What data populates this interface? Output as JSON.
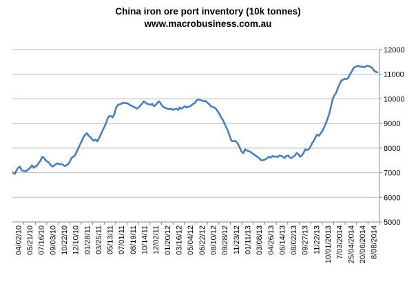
{
  "chart_data": {
    "type": "line",
    "title": "China iron ore port inventory (10k tonnes)",
    "subtitle": "www.macrobusiness.com.au",
    "xlabel": "",
    "ylabel": "",
    "ylim": [
      5000,
      12000
    ],
    "yticks": [
      5000,
      6000,
      7000,
      8000,
      9000,
      10000,
      11000,
      12000
    ],
    "y_axis_side": "right",
    "grid": "horizontal",
    "legend": "none",
    "line_color": "#4a7ebb",
    "x_tick_labels": [
      "04/02/10",
      "05/21/10",
      "07/16/10",
      "09/03/10",
      "10/22/10",
      "12/10/10",
      "01/28/11",
      "03/25/11",
      "05/13/11",
      "07/01/11",
      "08/19/11",
      "10/14/11",
      "12/02/11",
      "01/20/12",
      "03/16/12",
      "05/04/12",
      "06/22/12",
      "08/10/12",
      "09/28/12",
      "11/23/12",
      "01/11/13",
      "03/08/13",
      "04/26/13",
      "06/14/13",
      "08/02/13",
      "09/27/13",
      "11/22/13",
      "10/01/2013",
      "7/03/2014",
      "25/04/2014",
      "20/06/2014",
      "8/08/2014"
    ],
    "series": [
      {
        "values": [
          7000,
          6950,
          7100,
          7200,
          7250,
          7100,
          7080,
          7060,
          7080,
          7150,
          7200,
          7300,
          7200,
          7250,
          7300,
          7400,
          7500,
          7650,
          7600,
          7500,
          7450,
          7400,
          7300,
          7250,
          7300,
          7350,
          7380,
          7340,
          7360,
          7320,
          7280,
          7300,
          7350,
          7450,
          7600,
          7650,
          7700,
          7850,
          8000,
          8150,
          8300,
          8450,
          8550,
          8600,
          8500,
          8450,
          8350,
          8300,
          8350,
          8280,
          8400,
          8550,
          8700,
          8850,
          9000,
          9200,
          9300,
          9300,
          9250,
          9400,
          9650,
          9750,
          9780,
          9800,
          9850,
          9820,
          9830,
          9800,
          9750,
          9720,
          9680,
          9650,
          9600,
          9650,
          9720,
          9800,
          9900,
          9850,
          9800,
          9780,
          9760,
          9800,
          9700,
          9750,
          9850,
          9900,
          9800,
          9700,
          9650,
          9620,
          9600,
          9580,
          9600,
          9550,
          9580,
          9600,
          9550,
          9650,
          9600,
          9650,
          9700,
          9650,
          9680,
          9700,
          9750,
          9800,
          9850,
          9950,
          9980,
          9950,
          9930,
          9900,
          9920,
          9850,
          9800,
          9700,
          9680,
          9650,
          9600,
          9500,
          9400,
          9250,
          9150,
          9000,
          8850,
          8700,
          8500,
          8300,
          8280,
          8300,
          8250,
          8150,
          8000,
          7850,
          7800,
          7950,
          7900,
          7880,
          7850,
          7800,
          7750,
          7700,
          7650,
          7600,
          7520,
          7500,
          7520,
          7550,
          7600,
          7650,
          7620,
          7680,
          7650,
          7660,
          7640,
          7700,
          7680,
          7650,
          7600,
          7680,
          7700,
          7620,
          7600,
          7650,
          7700,
          7800,
          7750,
          7650,
          7700,
          7800,
          7950,
          7920,
          7950,
          8050,
          8200,
          8300,
          8450,
          8550,
          8500,
          8600,
          8700,
          8850,
          9000,
          9200,
          9400,
          9700,
          10000,
          10150,
          10250,
          10450,
          10600,
          10750,
          10780,
          10820,
          10800,
          10850,
          11000,
          11100,
          11250,
          11300,
          11320,
          11350,
          11300,
          11320,
          11280,
          11300,
          11350,
          11330,
          11300,
          11250,
          11150,
          11100,
          11080
        ]
      }
    ]
  }
}
